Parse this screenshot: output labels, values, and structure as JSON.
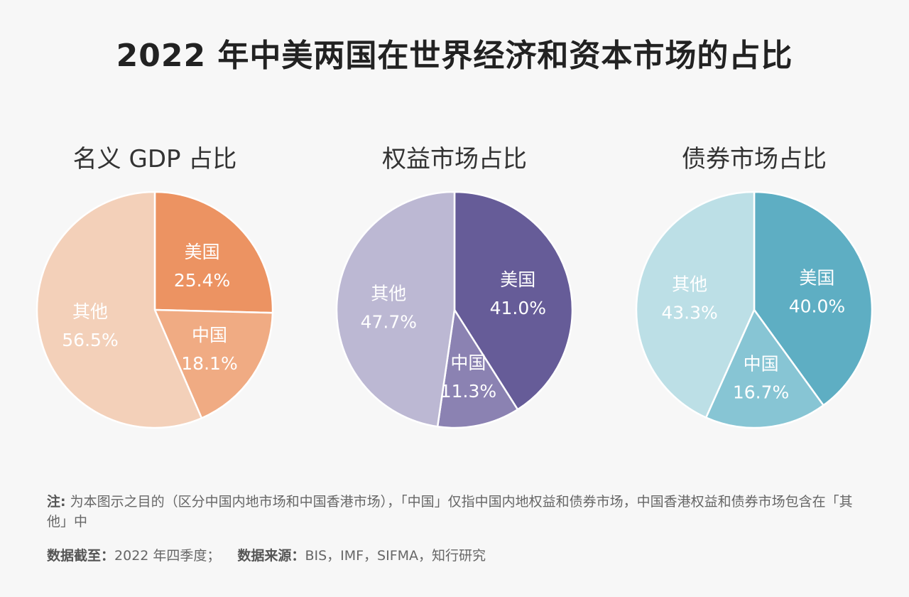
{
  "title": "2022 年中美两国在世界经济和资本市场的占比",
  "chart_data": [
    {
      "type": "pie",
      "title": "名义 GDP 占比",
      "slices": [
        {
          "label": "美国",
          "value": 25.4,
          "display": "25.4%",
          "color": "#ec9362"
        },
        {
          "label": "中国",
          "value": 18.1,
          "display": "18.1%",
          "color": "#f0ab83"
        },
        {
          "label": "其他",
          "value": 56.5,
          "display": "56.5%",
          "color": "#f3d0b9"
        }
      ]
    },
    {
      "type": "pie",
      "title": "权益市场占比",
      "slices": [
        {
          "label": "美国",
          "value": 41.0,
          "display": "41.0%",
          "color": "#665c98"
        },
        {
          "label": "中国",
          "value": 11.3,
          "display": "11.3%",
          "color": "#8b82b2"
        },
        {
          "label": "其他",
          "value": 47.7,
          "display": "47.7%",
          "color": "#bcb8d3"
        }
      ]
    },
    {
      "type": "pie",
      "title": "债券市场占比",
      "slices": [
        {
          "label": "美国",
          "value": 40.0,
          "display": "40.0%",
          "color": "#5eaec3"
        },
        {
          "label": "中国",
          "value": 16.7,
          "display": "16.7%",
          "color": "#87c5d4"
        },
        {
          "label": "其他",
          "value": 43.3,
          "display": "43.3%",
          "color": "#bcdfe6"
        }
      ]
    }
  ],
  "note": {
    "label": "注:",
    "text": "为本图示之目的（区分中国内地市场和中国香港市场），「中国」仅指中国内地权益和债券市场，中国香港权益和债券市场包含在「其他」中"
  },
  "source": {
    "date_label": "数据截至：",
    "date_value": "2022 年四季度；",
    "source_label": "数据来源：",
    "source_value": "BIS，IMF，SIFMA，知行研究"
  }
}
